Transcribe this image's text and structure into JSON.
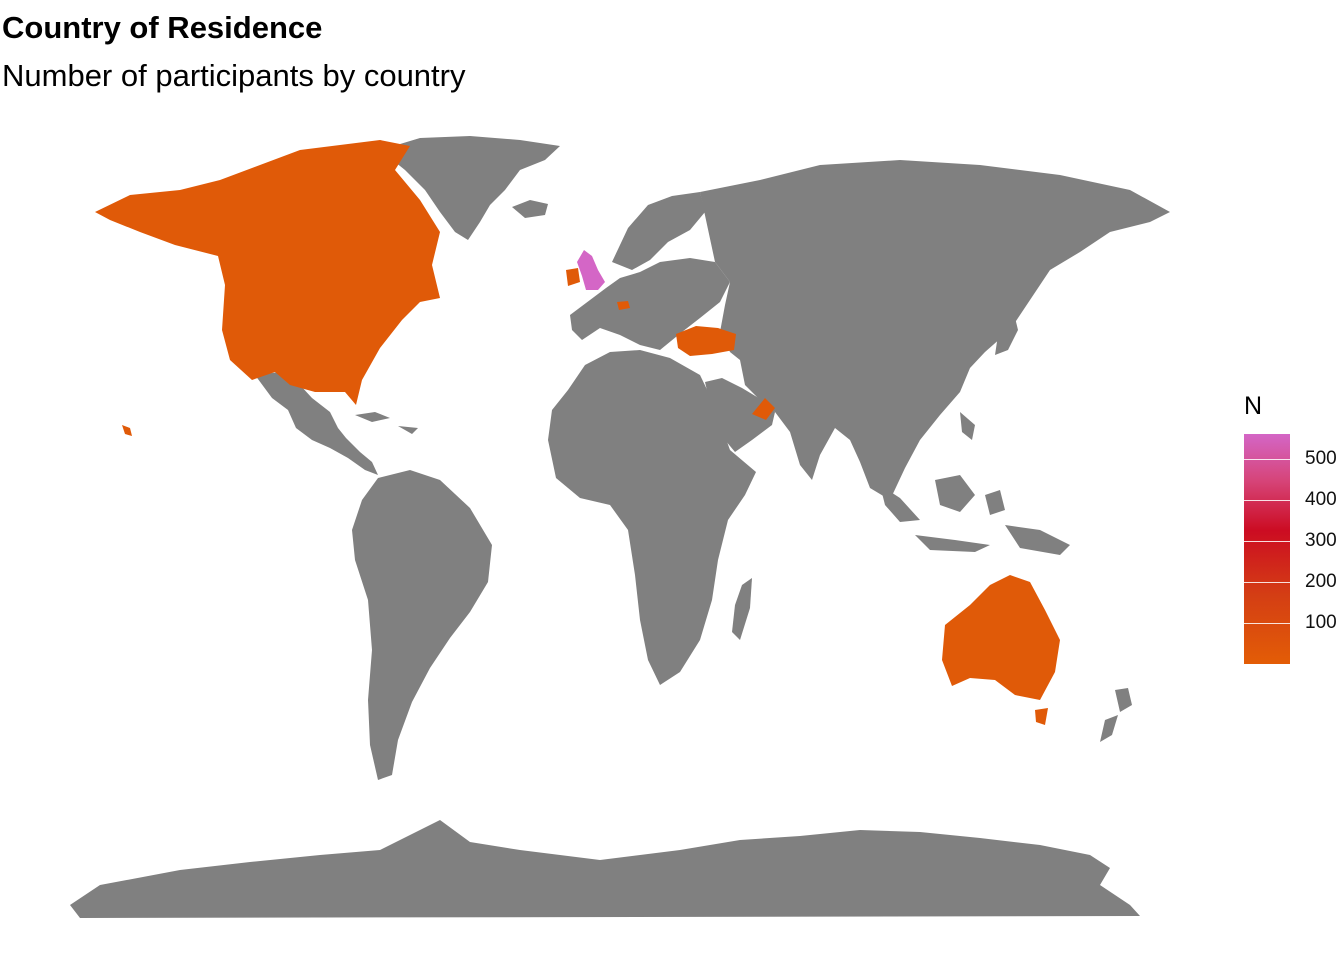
{
  "title": "Country of Residence",
  "subtitle": "Number of participants by country",
  "legend": {
    "title": "N",
    "ticks": [
      100,
      200,
      300,
      400,
      500
    ],
    "min": 1,
    "max": 560,
    "colors": [
      "#e35d06",
      "#d43e14",
      "#cc0c22",
      "#d6457a",
      "#d466c6"
    ]
  },
  "colors": {
    "land": "#808080",
    "low": "#e05a08",
    "high": "#d466c6"
  },
  "chart_data": {
    "type": "choropleth",
    "value_label": "N",
    "regions": [
      {
        "name": "United Kingdom",
        "value": 560
      },
      {
        "name": "United States",
        "value": 60
      },
      {
        "name": "Canada",
        "value": 60
      },
      {
        "name": "Ireland",
        "value": 20
      },
      {
        "name": "Australia",
        "value": 10
      },
      {
        "name": "Turkey",
        "value": 5
      },
      {
        "name": "United Arab Emirates",
        "value": 3
      },
      {
        "name": "Switzerland",
        "value": 3
      }
    ]
  }
}
